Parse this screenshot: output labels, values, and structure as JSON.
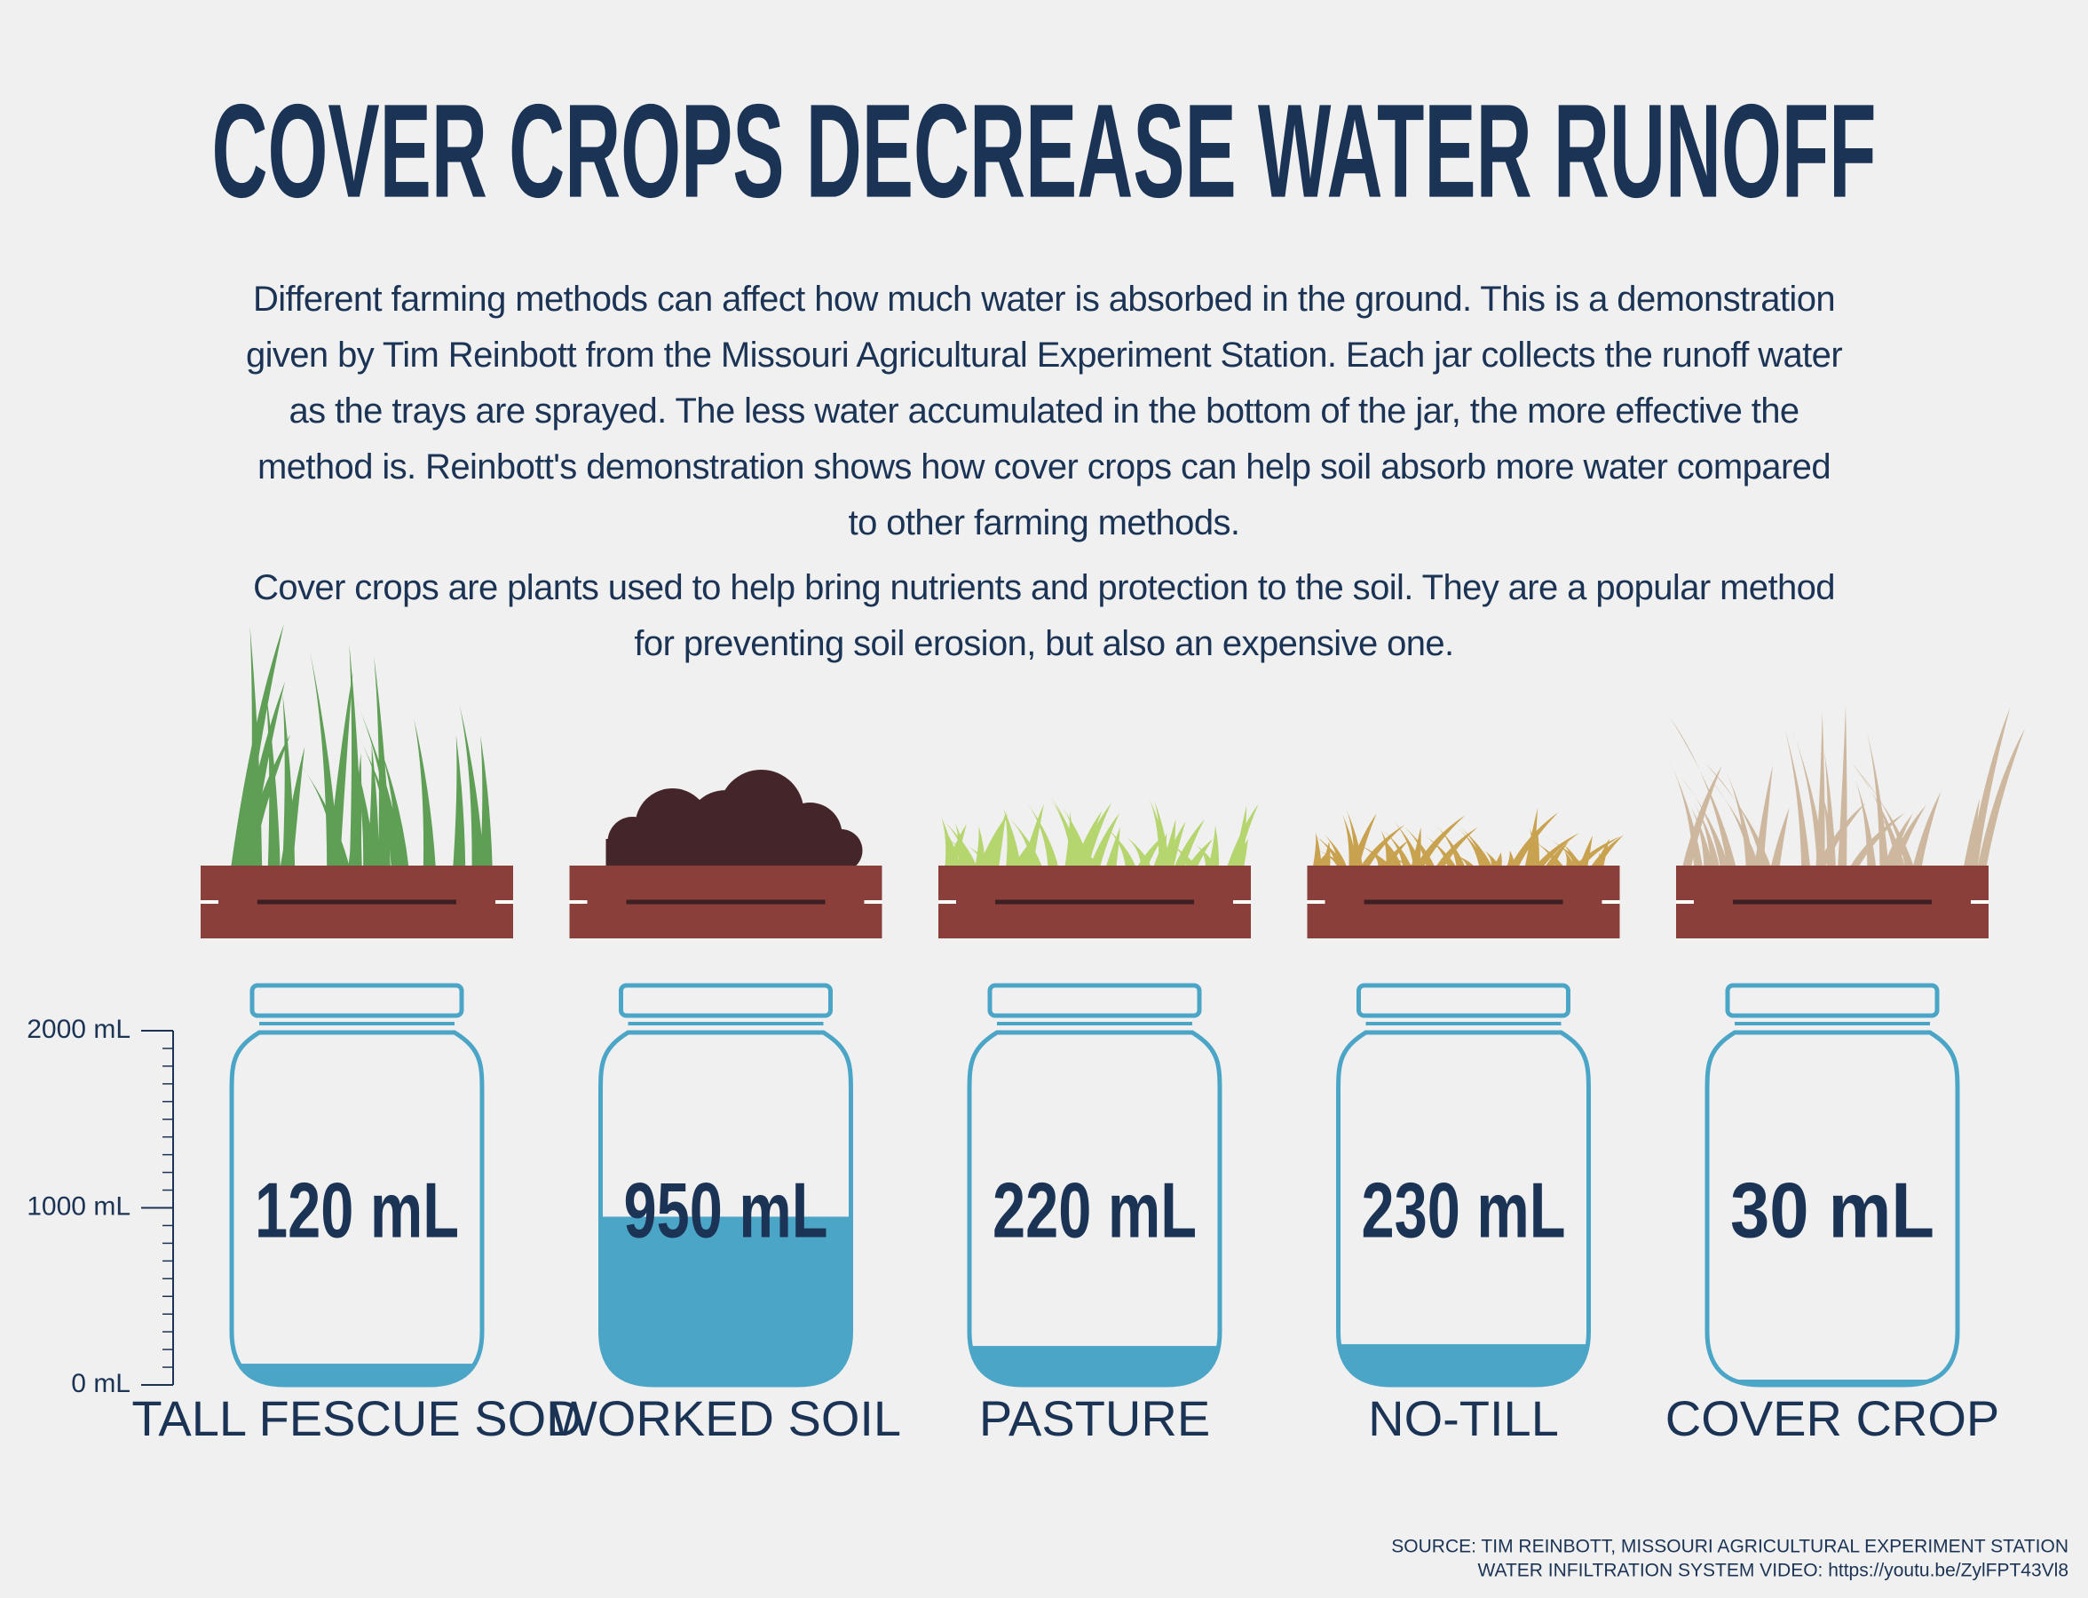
{
  "chart_data": {
    "type": "jar",
    "title": "COVER CROPS DECREASE WATER RUNOFF",
    "description": [
      "Different farming methods can affect how much water is absorbed in the ground. This is a demonstration given by Tim Reinbott from the Missouri Agricultural Experiment Station. Each jar collects the runoff water as the trays are sprayed. The less water accumulated in the bottom of the jar, the more effective the method is. Reinbott's demonstration shows how cover crops can help soil absorb more water compared to other farming methods.",
      "Cover crops are plants used to help bring nutrients and protection to the soil. They are a popular method for preventing soil erosion, but also an expensive one."
    ],
    "categories": [
      "TALL FESCUE SOD",
      "WORKED SOIL",
      "PASTURE",
      "NO-TILL",
      "COVER CROP"
    ],
    "values": [
      120,
      950,
      220,
      230,
      30
    ],
    "value_labels": [
      "120 mL",
      "950 mL",
      "220 mL",
      "230 mL",
      "30 mL"
    ],
    "color": "#4ba5c6",
    "ylim": [
      0,
      2000
    ],
    "yticks": [
      {
        "value": 0,
        "label": "0 mL"
      },
      {
        "value": 1000,
        "label": "1000 mL"
      },
      {
        "value": 2000,
        "label": "2000 mL"
      }
    ],
    "minor_yticks": [
      100,
      200,
      300,
      400,
      500,
      600,
      700,
      800,
      900,
      1100,
      1200,
      1300,
      1400,
      1500,
      1600,
      1700,
      1800,
      1900
    ],
    "source": [
      "SOURCE: TIM REINBOTT, MISSOURI AGRICULTURAL EXPERIMENT STATION",
      "WATER INFILTRATION SYSTEM VIDEO: https://youtu.be/ZylFPT43Vl8"
    ]
  }
}
